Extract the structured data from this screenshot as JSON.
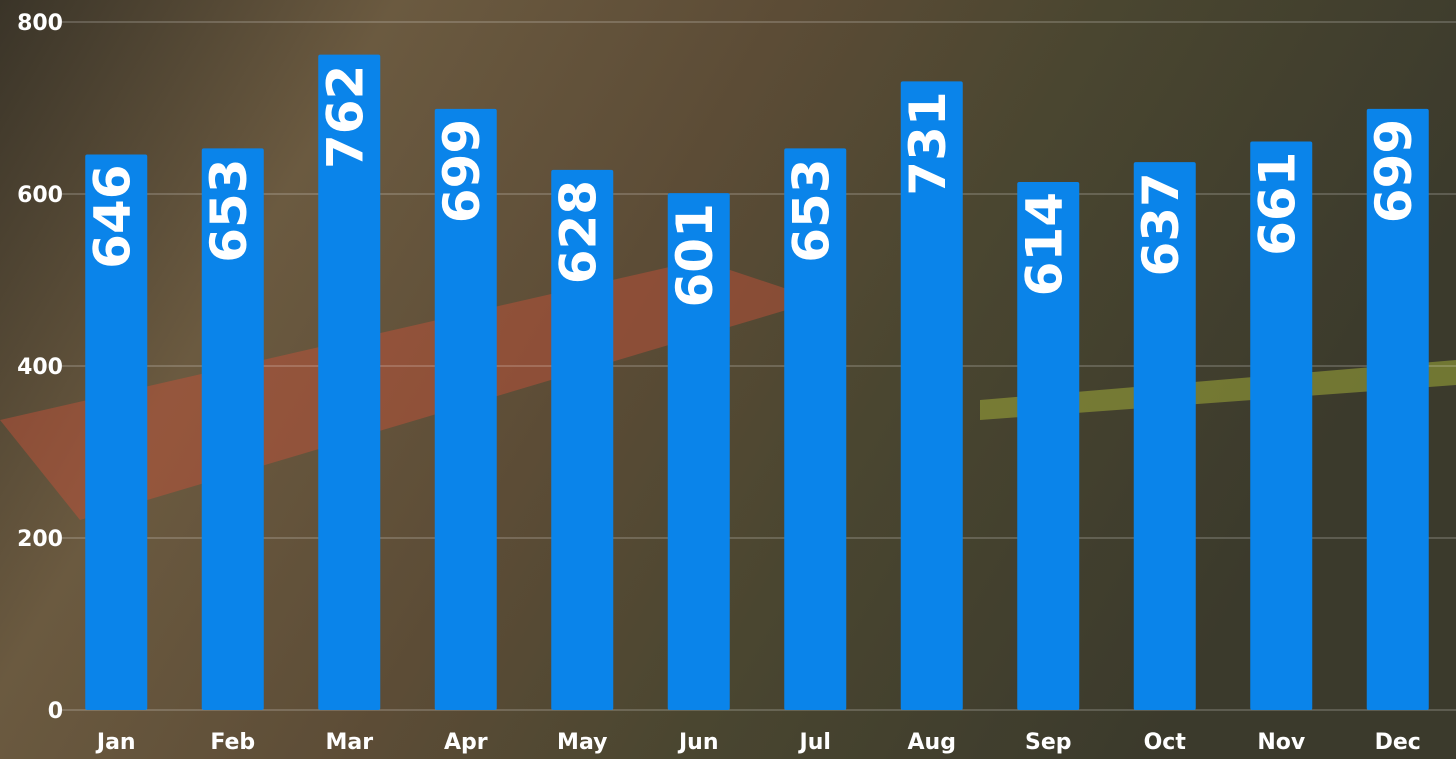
{
  "chart_data": {
    "type": "bar",
    "categories": [
      "Jan",
      "Feb",
      "Mar",
      "Apr",
      "May",
      "Jun",
      "Jul",
      "Aug",
      "Sep",
      "Oct",
      "Nov",
      "Dec"
    ],
    "values": [
      646,
      653,
      762,
      699,
      628,
      601,
      653,
      731,
      614,
      637,
      661,
      699
    ],
    "color": "#0a84ea",
    "ylim": [
      0,
      800
    ],
    "yticks": [
      0,
      200,
      400,
      600,
      800
    ],
    "grid": true
  }
}
